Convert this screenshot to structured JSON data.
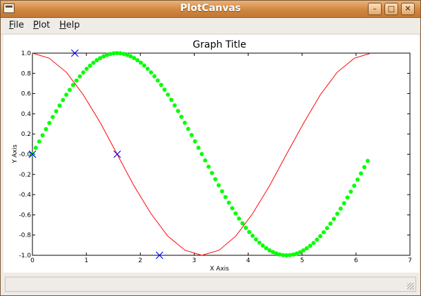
{
  "window": {
    "title": "PlotCanvas"
  },
  "window_buttons": {
    "minimize": "–",
    "maximize": "□",
    "close": "✕"
  },
  "menu": [
    {
      "label": "File",
      "mnemonic": "F",
      "rest": "ile"
    },
    {
      "label": "Plot",
      "mnemonic": "P",
      "rest": "lot"
    },
    {
      "label": "Help",
      "mnemonic": "H",
      "rest": "elp"
    }
  ],
  "chart_data": {
    "type": "line",
    "title": "Graph Title",
    "xlabel": "X Axis",
    "ylabel": "Y Axis",
    "xlim": [
      0,
      7
    ],
    "ylim": [
      -1.0,
      1.0
    ],
    "x_ticks": [
      "0",
      "1",
      "2",
      "3",
      "4",
      "5",
      "6",
      "7"
    ],
    "y_ticks": [
      "-1.0",
      "-0.8",
      "-0.6",
      "-0.4",
      "-0.2",
      "-0.0",
      "0.2",
      "0.4",
      "0.6",
      "0.8",
      "1.0"
    ],
    "grid": false,
    "series": [
      {
        "style": "dots",
        "color": "#00ff00",
        "x_start": 0.0,
        "x_step": 0.0628,
        "count": 100,
        "function": "sin(x)"
      },
      {
        "style": "line",
        "color": "#ff0000",
        "x": [
          0,
          0.31,
          0.63,
          0.94,
          1.26,
          1.57,
          1.88,
          2.2,
          2.51,
          2.83,
          3.14,
          3.46,
          3.77,
          4.08,
          4.4,
          4.71,
          5.03,
          5.34,
          5.65,
          5.97,
          6.28
        ],
        "y": [
          1.0,
          0.95,
          0.81,
          0.59,
          0.31,
          0.0,
          -0.31,
          -0.59,
          -0.81,
          -0.95,
          -1.0,
          -0.95,
          -0.81,
          -0.59,
          -0.31,
          0.0,
          0.31,
          0.59,
          0.81,
          0.95,
          1.0
        ]
      },
      {
        "style": "markers-x",
        "color": "#0000ff",
        "x": [
          0.0,
          0.785,
          1.571,
          2.356
        ],
        "y": [
          0.0,
          1.0,
          0.0,
          -1.0
        ]
      }
    ]
  }
}
